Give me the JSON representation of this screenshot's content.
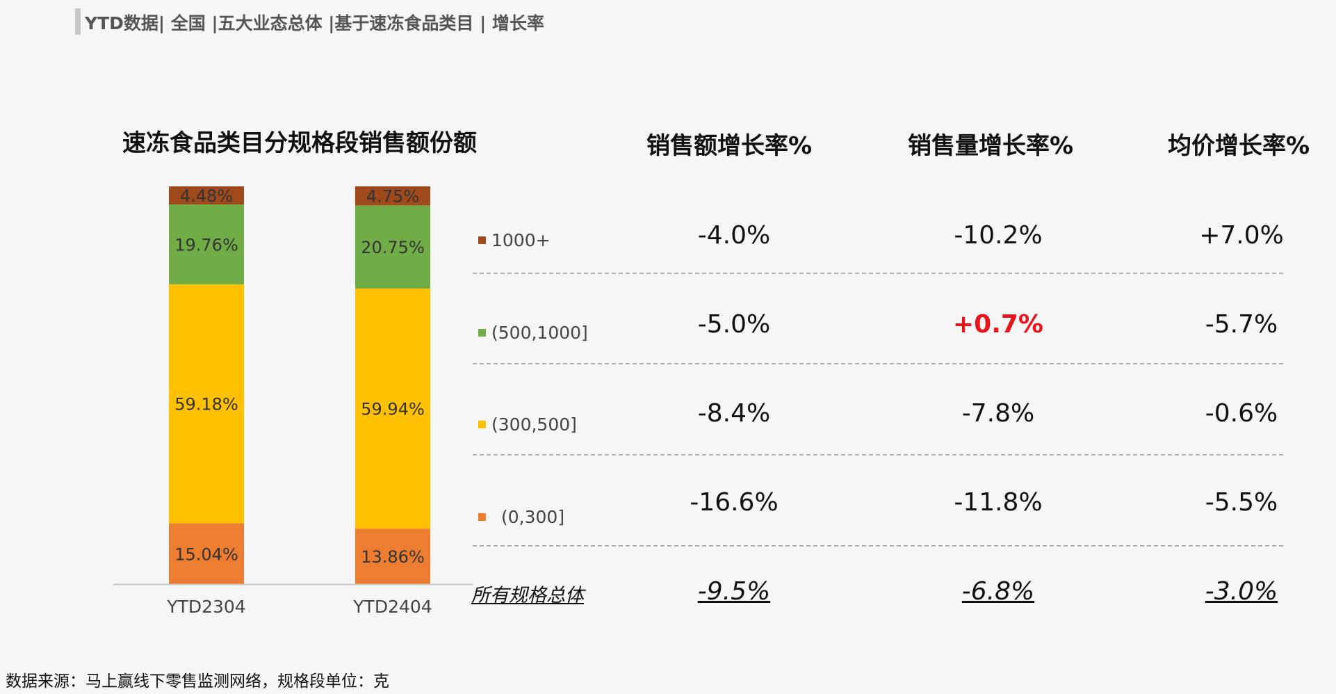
{
  "header": {
    "text": "YTD数据| 全国 |五大业态总体 |基于速冻食品类目 | 增长率"
  },
  "chart_data": {
    "type": "bar",
    "stacked": true,
    "title": "速冻食品类目分规格段销售额份额",
    "categories": [
      "YTD2304",
      "YTD2404"
    ],
    "series": [
      {
        "name": "(0,300]",
        "values": [
          15.04,
          13.86
        ],
        "labels": [
          "15.04%",
          "13.86%"
        ],
        "color": "#ed7d31"
      },
      {
        "name": "(300,500]",
        "values": [
          59.18,
          59.94
        ],
        "labels": [
          "59.18%",
          "59.94%"
        ],
        "color": "#ffc000"
      },
      {
        "name": "(500,1000]",
        "values": [
          19.76,
          20.75
        ],
        "labels": [
          "19.76%",
          "20.75%"
        ],
        "color": "#70ad47"
      },
      {
        "name": "1000+",
        "values": [
          4.48,
          4.75
        ],
        "labels": [
          "4.48%",
          "4.75%"
        ],
        "color": "#9e4a1c"
      }
    ],
    "ylim": [
      0,
      100
    ],
    "xlabel": "",
    "ylabel": "",
    "legend_position": "right"
  },
  "table": {
    "columns": [
      "销售额增长率%",
      "销售量增长率%",
      "均价增长率%"
    ],
    "rows": [
      {
        "segment": "1000+",
        "values": [
          "-4.0%",
          "-10.2%",
          "+7.0%"
        ]
      },
      {
        "segment": "(500,1000]",
        "values": [
          "-5.0%",
          "+0.7%",
          "-5.7%"
        ],
        "highlight_index": 1
      },
      {
        "segment": "(300,500]",
        "values": [
          "-8.4%",
          "-7.8%",
          "-0.6%"
        ]
      },
      {
        "segment": "(0,300]",
        "values": [
          "-16.6%",
          "-11.8%",
          "-5.5%"
        ]
      }
    ],
    "total": {
      "label": "所有规格总体",
      "values": [
        "-9.5%",
        "-6.8%",
        "-3.0%"
      ]
    },
    "highlight_color": "#e8141b"
  },
  "source": "数据来源：马上赢线下零售监测网络，规格段单位：克"
}
